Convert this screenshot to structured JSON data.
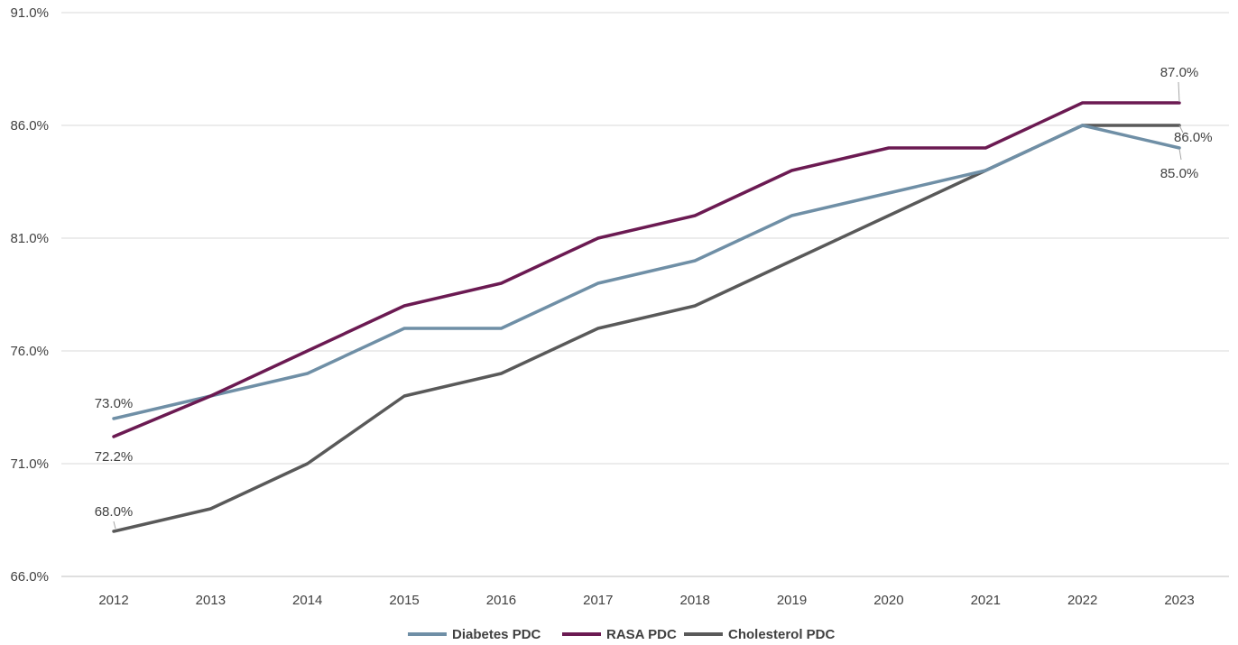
{
  "chart_data": {
    "type": "line",
    "x": [
      "2012",
      "2013",
      "2014",
      "2015",
      "2016",
      "2017",
      "2018",
      "2019",
      "2020",
      "2021",
      "2022",
      "2023"
    ],
    "ylim": [
      66,
      91
    ],
    "yticks": [
      "66.0%",
      "71.0%",
      "76.0%",
      "81.0%",
      "86.0%",
      "91.0%"
    ],
    "grid": true,
    "legend_position": "bottom",
    "series": [
      {
        "name": "Diabetes PDC",
        "color": "#6f8fa6",
        "values": [
          73.0,
          74.0,
          75.0,
          77.0,
          77.0,
          79.0,
          80.0,
          82.0,
          83.0,
          84.0,
          86.0,
          85.0
        ]
      },
      {
        "name": "RASA PDC",
        "color": "#6b1a52",
        "values": [
          72.2,
          74.0,
          76.0,
          78.0,
          79.0,
          81.0,
          82.0,
          84.0,
          85.0,
          85.0,
          87.0,
          87.0
        ]
      },
      {
        "name": "Cholesterol PDC",
        "color": "#595959",
        "values": [
          68.0,
          69.0,
          71.0,
          74.0,
          75.0,
          77.0,
          78.0,
          80.0,
          82.0,
          84.0,
          86.0,
          86.0
        ]
      }
    ],
    "data_labels": [
      {
        "series": 0,
        "index": 0,
        "text": "73.0%"
      },
      {
        "series": 1,
        "index": 0,
        "text": "72.2%"
      },
      {
        "series": 2,
        "index": 0,
        "text": "68.0%"
      },
      {
        "series": 1,
        "index": 11,
        "text": "87.0%"
      },
      {
        "series": 2,
        "index": 11,
        "text": "86.0%"
      },
      {
        "series": 0,
        "index": 11,
        "text": "85.0%"
      }
    ]
  }
}
